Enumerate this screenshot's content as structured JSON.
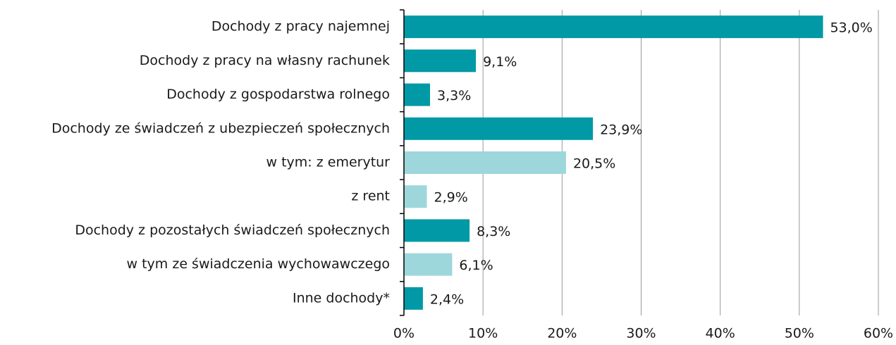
{
  "chart_data": {
    "type": "barh",
    "categories": [
      "Dochody z pracy najemnej",
      "Dochody z pracy na własny rachunek",
      "Dochody z gospodarstwa rolnego",
      "Dochody ze świadczeń z ubezpieczeń społecznych",
      "w tym: z emerytur",
      "z rent",
      "Dochody z pozostałych świadczeń społecznych",
      "w tym ze świadczenia wychowawczego",
      "Inne dochody*"
    ],
    "values": [
      53.0,
      9.1,
      3.3,
      23.9,
      20.5,
      2.9,
      8.3,
      6.1,
      2.4
    ],
    "value_labels": [
      "53,0%",
      "9,1%",
      "3,3%",
      "23,9%",
      "20,5%",
      "2,9%",
      "8,3%",
      "6,1%",
      "2,4%"
    ],
    "colors": [
      "#0099a5",
      "#0099a5",
      "#0099a5",
      "#0099a5",
      "#9dd7dc",
      "#9dd7dc",
      "#0099a5",
      "#9dd7dc",
      "#0099a5"
    ],
    "xlim": [
      0,
      60
    ],
    "xticks": [
      {
        "value": 0,
        "label": "0%"
      },
      {
        "value": 10,
        "label": "10%"
      },
      {
        "value": 20,
        "label": "20%"
      },
      {
        "value": 30,
        "label": "30%"
      },
      {
        "value": 40,
        "label": "40%"
      },
      {
        "value": 50,
        "label": "50%"
      },
      {
        "value": 60,
        "label": "60%"
      }
    ],
    "grid": true
  }
}
